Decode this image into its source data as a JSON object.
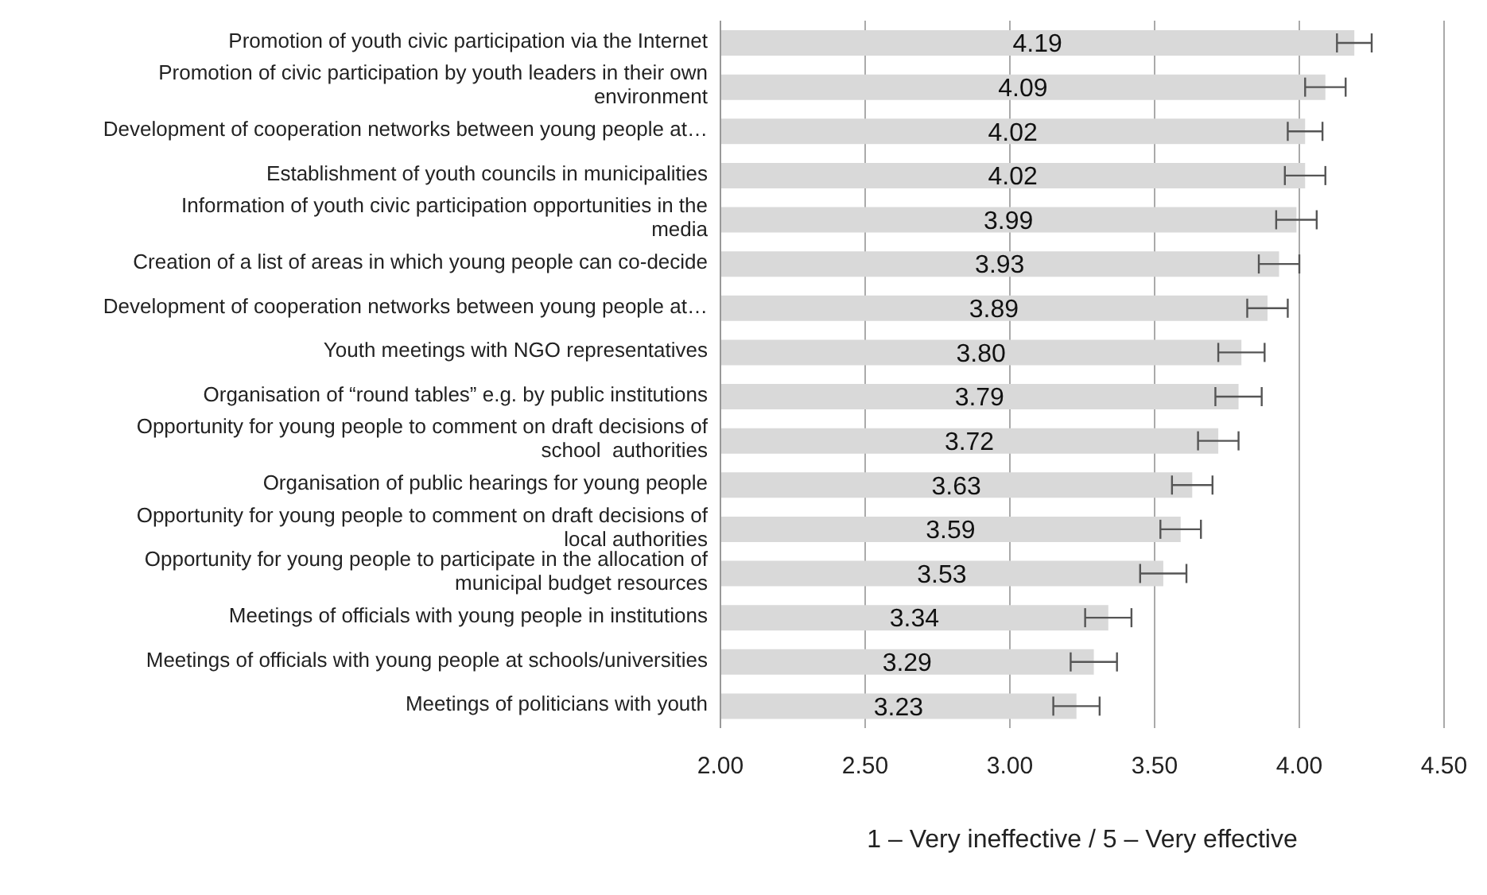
{
  "chart_data": {
    "type": "bar",
    "orientation": "horizontal",
    "xlabel": "1 – Very ineffective / 5 – Very effective",
    "categories": [
      "Promotion of youth civic participation via the Internet",
      "Promotion of civic participation by youth leaders in their own environment",
      "Development of cooperation networks between young people at…",
      "Establishment of youth councils in municipalities",
      "Information of youth civic participation opportunities in the media",
      "Creation of a list of areas in which young people can co-decide",
      "Development of cooperation networks between young people at…",
      "Youth meetings with NGO representatives",
      "Organisation of “round tables” e.g. by public institutions",
      "Opportunity for young people to comment on draft decisions of school  authorities",
      "Organisation of public hearings for young people",
      "Opportunity for young people to comment on draft decisions of local authorities",
      "Opportunity for young people to participate in the allocation of municipal budget resources",
      "Meetings of officials with young people in institutions",
      "Meetings of officials with young people at schools/universities",
      "Meetings of politicians with youth"
    ],
    "values": [
      4.19,
      4.09,
      4.02,
      4.02,
      3.99,
      3.93,
      3.89,
      3.8,
      3.79,
      3.72,
      3.63,
      3.59,
      3.53,
      3.34,
      3.29,
      3.23
    ],
    "value_labels": [
      "4.19",
      "4.09",
      "4.02",
      "4.02",
      "3.99",
      "3.93",
      "3.89",
      "3.80",
      "3.79",
      "3.72",
      "3.63",
      "3.59",
      "3.53",
      "3.34",
      "3.29",
      "3.23"
    ],
    "errors": [
      0.06,
      0.07,
      0.06,
      0.07,
      0.07,
      0.07,
      0.07,
      0.08,
      0.08,
      0.07,
      0.07,
      0.07,
      0.08,
      0.08,
      0.08,
      0.08
    ],
    "color": "#d9d9d9",
    "xlim": [
      2,
      4.5
    ],
    "xticks": [
      {
        "value": 2,
        "label": "2.00"
      },
      {
        "value": 2.5,
        "label": "2.50"
      },
      {
        "value": 3,
        "label": "3.00"
      },
      {
        "value": 3.5,
        "label": "3.50"
      },
      {
        "value": 4,
        "label": "4.00"
      },
      {
        "value": 4.5,
        "label": "4.50"
      }
    ],
    "grid": "x"
  }
}
